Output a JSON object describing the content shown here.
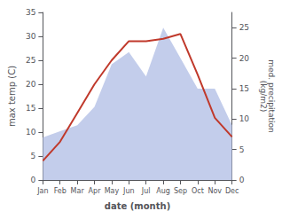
{
  "chart_data": {
    "type": "line",
    "categories": [
      "Jan",
      "Feb",
      "Mar",
      "Apr",
      "May",
      "Jun",
      "Jul",
      "Aug",
      "Sep",
      "Oct",
      "Nov",
      "Dec"
    ],
    "xlabel": "date (month)",
    "ylabel": "max temp (C)",
    "y2label": "med. precipitation\n(kg/m2)",
    "series": [
      {
        "type": "area",
        "axis": "y2",
        "color": "#b8c4e8",
        "values": [
          7.0,
          8.0,
          9.0,
          12.0,
          19.0,
          21.0,
          17.0,
          25.0,
          20.0,
          15.0,
          15.0,
          9.0
        ]
      },
      {
        "type": "line",
        "color": "#c0392b",
        "values": [
          4.0,
          8.0,
          14.0,
          20.0,
          25.0,
          29.0,
          29.0,
          29.5,
          30.5,
          22.0,
          13.0,
          9.0
        ]
      }
    ],
    "ylim": [
      0,
      35
    ],
    "yticks": [
      0,
      5,
      10,
      15,
      20,
      25,
      30,
      35
    ],
    "y2lim": [
      0,
      27.5
    ],
    "y2ticks": [
      0,
      5,
      10,
      15,
      20,
      25
    ],
    "grid": false
  }
}
